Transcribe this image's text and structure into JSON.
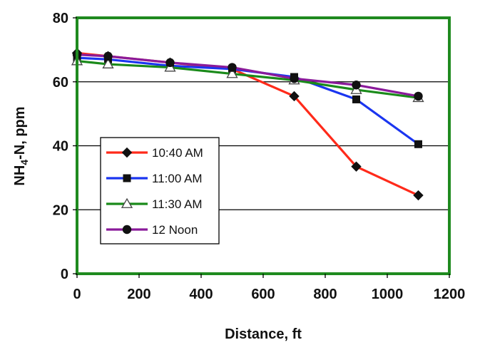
{
  "chart_data": {
    "type": "line",
    "xlabel": "Distance, ft",
    "ylabel": "NH4-N, ppm",
    "ylabel_main": "NH",
    "ylabel_sub": "4",
    "ylabel_rest": "-N, ppm",
    "xlim": [
      0,
      1200
    ],
    "ylim": [
      0,
      80
    ],
    "xticks": [
      0,
      200,
      400,
      600,
      800,
      1000,
      1200
    ],
    "yticks": [
      0,
      20,
      40,
      60,
      80
    ],
    "grid": "horizontal",
    "legend_position": "lower-left",
    "plot_border_color": "#1f8a1f",
    "series": [
      {
        "name": "10:40 AM",
        "color": "#ff2a1a",
        "marker": "diamond",
        "x": [
          0,
          100,
          300,
          500,
          700,
          900,
          1100
        ],
        "y": [
          69,
          68,
          66,
          64,
          55.5,
          33.5,
          24.5
        ]
      },
      {
        "name": "11:00 AM",
        "color": "#1a35f0",
        "marker": "square",
        "x": [
          0,
          100,
          300,
          500,
          700,
          900,
          1100
        ],
        "y": [
          67.5,
          67,
          65,
          64,
          61.5,
          54.5,
          40.5
        ]
      },
      {
        "name": "11:30 AM",
        "color": "#1a8a1a",
        "marker": "triangle",
        "x": [
          0,
          100,
          300,
          500,
          700,
          900,
          1100
        ],
        "y": [
          66.5,
          65.5,
          64.5,
          62.5,
          60.5,
          57.5,
          55
        ]
      },
      {
        "name": "12 Noon",
        "color": "#8a1a9a",
        "marker": "circle",
        "x": [
          0,
          100,
          300,
          500,
          700,
          900,
          1100
        ],
        "y": [
          68.5,
          68,
          66,
          64.5,
          61,
          59,
          55.5
        ]
      }
    ]
  }
}
